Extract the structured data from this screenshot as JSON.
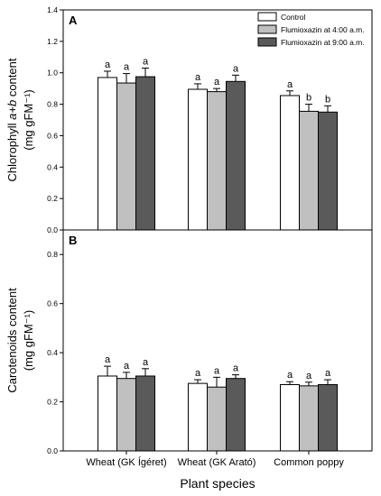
{
  "legend": {
    "entries": [
      {
        "label": "Control",
        "color": "#ffffff"
      },
      {
        "label": "Flumioxazin at 4:00 a.m.",
        "color": "#c0c0c0"
      },
      {
        "label": "Flumioxazin at 9:00 a.m.",
        "color": "#5a5a5a"
      }
    ]
  },
  "xlabel": "Plant species",
  "categories": [
    "Wheat (GK Ígéret)",
    "Wheat (GK Arató)",
    "Common poppy"
  ],
  "chart_data": [
    {
      "type": "bar",
      "panel": "A",
      "ylabel_line1": "Chlorophyll a+b content",
      "ylabel_line2": "(mg gFM⁻¹)",
      "ylim": [
        0,
        1.4
      ],
      "yticks": [
        "0.0",
        "0.2",
        "0.4",
        "0.6",
        "0.8",
        "1.0",
        "1.2",
        "1.4"
      ],
      "categories": [
        "Wheat (GK Ígéret)",
        "Wheat (GK Arató)",
        "Common poppy"
      ],
      "series": [
        {
          "name": "Control",
          "values": [
            0.97,
            0.895,
            0.855
          ],
          "errors": [
            0.04,
            0.035,
            0.03
          ],
          "sig": [
            "a",
            "a",
            "a"
          ]
        },
        {
          "name": "Flumioxazin at 4:00 a.m.",
          "values": [
            0.935,
            0.88,
            0.755
          ],
          "errors": [
            0.06,
            0.02,
            0.045
          ],
          "sig": [
            "a",
            "a",
            "b"
          ]
        },
        {
          "name": "Flumioxazin at 9:00 a.m.",
          "values": [
            0.975,
            0.945,
            0.75
          ],
          "errors": [
            0.055,
            0.04,
            0.04
          ],
          "sig": [
            "a",
            "a",
            "b"
          ]
        }
      ]
    },
    {
      "type": "bar",
      "panel": "B",
      "ylabel_line1": "Carotenoids content",
      "ylabel_line2": "(mg gFM⁻¹)",
      "ylim": [
        0,
        0.9
      ],
      "yticks": [
        "0.0",
        "0.2",
        "0.4",
        "0.6",
        "0.8"
      ],
      "categories": [
        "Wheat (GK Ígéret)",
        "Wheat (GK Arató)",
        "Common poppy"
      ],
      "series": [
        {
          "name": "Control",
          "values": [
            0.305,
            0.275,
            0.27
          ],
          "errors": [
            0.04,
            0.015,
            0.012
          ],
          "sig": [
            "a",
            "a",
            "a"
          ]
        },
        {
          "name": "Flumioxazin at 4:00 a.m.",
          "values": [
            0.295,
            0.26,
            0.265
          ],
          "errors": [
            0.025,
            0.04,
            0.015
          ],
          "sig": [
            "a",
            "a",
            "a"
          ]
        },
        {
          "name": "Flumioxazin at 9:00 a.m.",
          "values": [
            0.305,
            0.295,
            0.27
          ],
          "errors": [
            0.03,
            0.015,
            0.02
          ],
          "sig": [
            "a",
            "a",
            "a"
          ]
        }
      ]
    }
  ]
}
